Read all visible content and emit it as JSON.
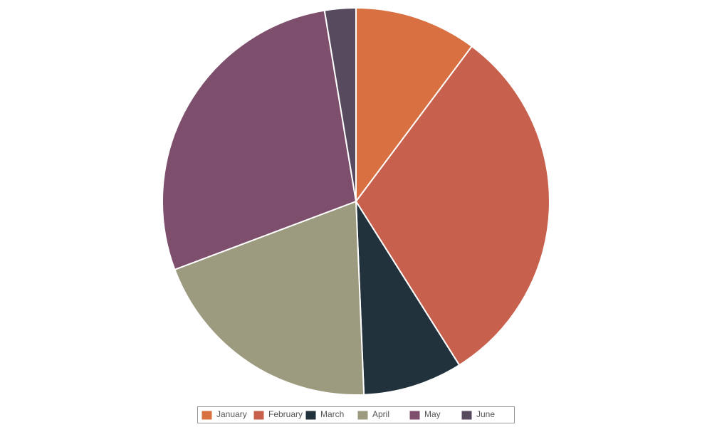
{
  "chart_data": {
    "type": "pie",
    "categories": [
      "January",
      "February",
      "March",
      "April",
      "May",
      "June"
    ],
    "values": [
      10.2,
      30.8,
      8.3,
      19.9,
      28.1,
      2.6
    ],
    "colors": [
      "#d97041",
      "#c7604c",
      "#21323d",
      "#9d9b7f",
      "#7d4f6d",
      "#584a5e"
    ],
    "legend": "bottom"
  }
}
